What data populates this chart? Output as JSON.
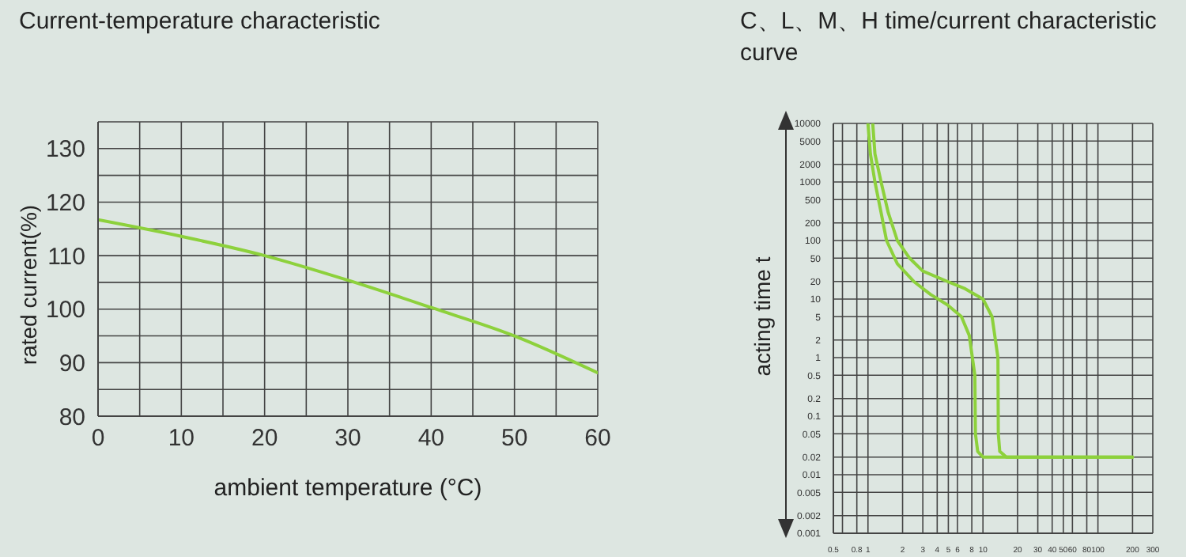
{
  "chart_data": [
    {
      "type": "line",
      "title": "Current-temperature characteristic",
      "xlabel": "ambient temperature (°C)",
      "ylabel": "rated current(%)",
      "x": [
        0,
        10,
        20,
        30,
        40,
        50,
        60
      ],
      "series": [
        {
          "color": "#8dd13c",
          "values": [
            116.7,
            113.6,
            110.0,
            105.4,
            100.3,
            95.0,
            88.1
          ]
        }
      ],
      "xlim": [
        0,
        60
      ],
      "xticks": [
        0,
        {
          "value": 5,
          "label": null
        },
        10,
        {
          "value": 15,
          "label": null
        },
        20,
        {
          "value": 25,
          "label": null
        },
        30,
        {
          "value": 35,
          "label": null
        },
        40,
        {
          "value": 45,
          "label": null
        },
        50,
        {
          "value": 55,
          "label": null
        },
        60
      ],
      "ylim": [
        80,
        135
      ],
      "yticks": [
        80,
        {
          "value": 85,
          "label": null
        },
        90,
        {
          "value": 95,
          "label": null
        },
        100,
        {
          "value": 105,
          "label": null
        },
        110,
        {
          "value": 115,
          "label": null
        },
        120,
        {
          "value": 125,
          "label": null
        },
        130,
        {
          "value": 135,
          "label": null
        }
      ],
      "grid": true,
      "marker": "none",
      "line_style": "solid"
    },
    {
      "type": "line",
      "title": "C、L、M、H time/current characteristic curve",
      "ylabel": "acting time t",
      "log": "xy",
      "series": [
        {
          "color": "#8dd13c",
          "x": [
            1.0,
            1.05,
            1.15,
            1.3,
            1.45,
            1.8,
            2.5,
            3.5,
            4.9,
            6.5,
            7.6,
            8.5,
            8.6,
            9,
            10,
            200
          ],
          "values": [
            10000,
            3000,
            1000,
            300,
            100,
            40,
            20,
            12,
            8,
            5,
            2.4,
            0.5,
            0.05,
            0.025,
            0.02,
            0.02
          ]
        },
        {
          "color": "#8dd13c",
          "x": [
            1.1,
            1.15,
            1.3,
            1.5,
            1.8,
            2.3,
            3,
            4.9,
            7,
            10,
            12,
            13.5,
            13.6,
            14,
            16,
            200
          ],
          "values": [
            10000,
            3000,
            1000,
            300,
            100,
            50,
            30,
            20,
            15,
            10,
            5,
            1,
            0.05,
            0.025,
            0.02,
            0.02
          ]
        }
      ],
      "xlim": [
        0.5,
        300
      ],
      "xticks": [
        0.5,
        {
          "value": 0.6,
          "label": null
        },
        0.8,
        1,
        2,
        3,
        4,
        5,
        6,
        8,
        10,
        20,
        30,
        40,
        50,
        60,
        80,
        100,
        200,
        300
      ],
      "ylim": [
        0.001,
        10000
      ],
      "yticks": [
        0.001,
        0.002,
        0.005,
        0.01,
        0.02,
        0.05,
        0.1,
        0.2,
        0.5,
        1,
        2,
        5,
        10,
        20,
        50,
        100,
        200,
        500,
        1000,
        2000,
        5000,
        10000
      ],
      "grid": true,
      "marker": "none",
      "line_style": "solid"
    }
  ]
}
